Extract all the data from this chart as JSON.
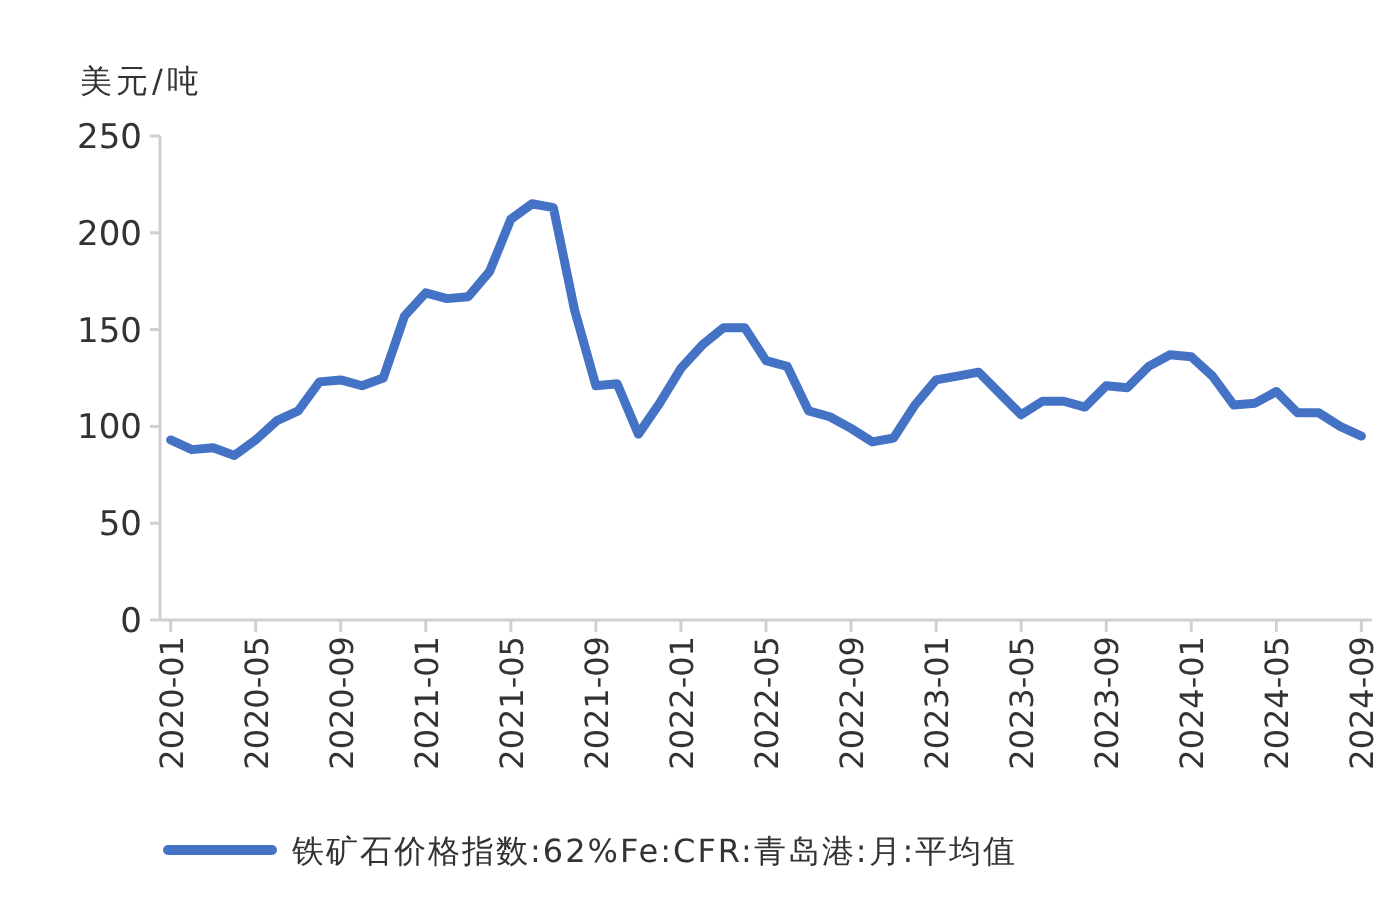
{
  "chart_data": {
    "type": "line",
    "ylabel": "美元/吨",
    "categories": [
      "2020-01",
      null,
      null,
      null,
      "2020-05",
      null,
      null,
      null,
      "2020-09",
      null,
      null,
      null,
      "2021-01",
      null,
      null,
      null,
      "2021-05",
      null,
      null,
      null,
      "2021-09",
      null,
      null,
      null,
      "2022-01",
      null,
      null,
      null,
      "2022-05",
      null,
      null,
      null,
      "2022-09",
      null,
      null,
      null,
      "2023-01",
      null,
      null,
      null,
      "2023-05",
      null,
      null,
      null,
      "2023-09",
      null,
      null,
      null,
      "2024-01",
      null,
      null,
      null,
      "2024-05",
      null,
      null,
      null,
      "2024-09"
    ],
    "series": [
      {
        "name": "铁矿石价格指数:62%Fe:CFR:青岛港:月:平均值",
        "color": "#4472c4",
        "values": [
          93,
          88,
          89,
          85,
          93,
          103,
          108,
          123,
          124,
          121,
          125,
          157,
          169,
          166,
          167,
          180,
          207,
          215,
          213,
          160,
          121,
          122,
          96,
          112,
          130,
          142,
          151,
          151,
          134,
          131,
          108,
          105,
          99,
          92,
          94,
          111,
          124,
          126,
          128,
          117,
          106,
          113,
          113,
          110,
          121,
          120,
          131,
          137,
          136,
          126,
          111,
          112,
          118,
          107,
          107,
          100,
          95
        ]
      }
    ],
    "ylim": [
      0,
      250
    ],
    "yticks": [
      0,
      50,
      100,
      150,
      200,
      250
    ],
    "grid": false,
    "legend": "bottom",
    "marker": "none",
    "line_style": "solid"
  }
}
